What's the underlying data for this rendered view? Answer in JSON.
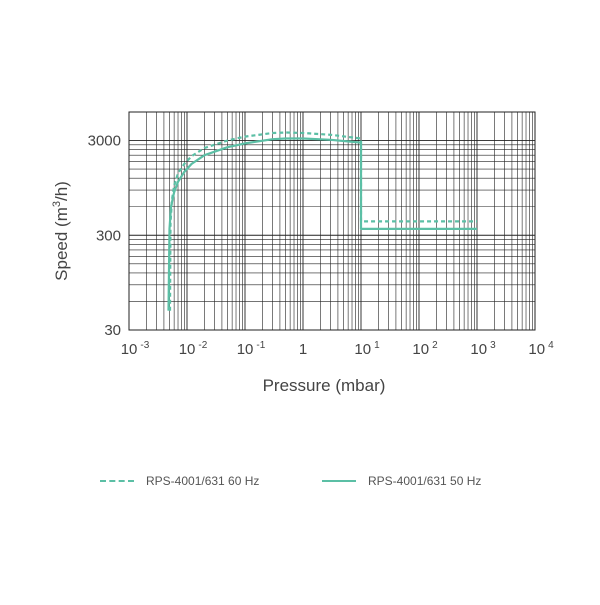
{
  "chart_data": {
    "type": "line",
    "title": "",
    "xlabel": "Pressure (mbar)",
    "ylabel_main": "Speed (m",
    "ylabel_sup": "3",
    "ylabel_end": "/h)",
    "x_scale": "log",
    "y_scale": "log",
    "xlim": [
      0.001,
      10000
    ],
    "ylim": [
      30,
      6000
    ],
    "grid": true,
    "legend_position": "bottom",
    "x_ticks": [
      {
        "value": 0.001,
        "base": "10",
        "exp": "-3"
      },
      {
        "value": 0.01,
        "base": "10",
        "exp": "-2"
      },
      {
        "value": 0.1,
        "base": "10",
        "exp": "-1"
      },
      {
        "value": 1,
        "base": "1",
        "exp": ""
      },
      {
        "value": 10,
        "base": "10",
        "exp": "1"
      },
      {
        "value": 100,
        "base": "10",
        "exp": "2"
      },
      {
        "value": 1000,
        "base": "10",
        "exp": "3"
      },
      {
        "value": 10000,
        "base": "10",
        "exp": "4"
      }
    ],
    "y_ticks": [
      {
        "value": 30,
        "label": "30"
      },
      {
        "value": 300,
        "label": "300"
      },
      {
        "value": 3000,
        "label": "3000"
      }
    ],
    "series": [
      {
        "name": "RPS-4001/631 60 Hz",
        "color": "#5bbfa5",
        "dash": "dashed",
        "points": [
          [
            0.0051,
            48
          ],
          [
            0.0052,
            400
          ],
          [
            0.0055,
            700
          ],
          [
            0.006,
            1000
          ],
          [
            0.007,
            1350
          ],
          [
            0.009,
            1700
          ],
          [
            0.012,
            2050
          ],
          [
            0.02,
            2500
          ],
          [
            0.05,
            3000
          ],
          [
            0.1,
            3300
          ],
          [
            0.3,
            3600
          ],
          [
            0.5,
            3650
          ],
          [
            1,
            3600
          ],
          [
            3,
            3450
          ],
          [
            10,
            3150
          ],
          [
            10,
            420
          ],
          [
            1000,
            420
          ]
        ]
      },
      {
        "name": "RPS-4001/631 50 Hz",
        "color": "#5bbfa5",
        "dash": "solid",
        "points": [
          [
            0.0048,
            48
          ],
          [
            0.005,
            350
          ],
          [
            0.0053,
            600
          ],
          [
            0.006,
            850
          ],
          [
            0.007,
            1100
          ],
          [
            0.009,
            1400
          ],
          [
            0.012,
            1700
          ],
          [
            0.02,
            2100
          ],
          [
            0.05,
            2550
          ],
          [
            0.1,
            2800
          ],
          [
            0.3,
            3100
          ],
          [
            0.5,
            3150
          ],
          [
            1,
            3150
          ],
          [
            3,
            3050
          ],
          [
            10,
            2850
          ],
          [
            10,
            350
          ],
          [
            1000,
            350
          ]
        ]
      }
    ]
  }
}
